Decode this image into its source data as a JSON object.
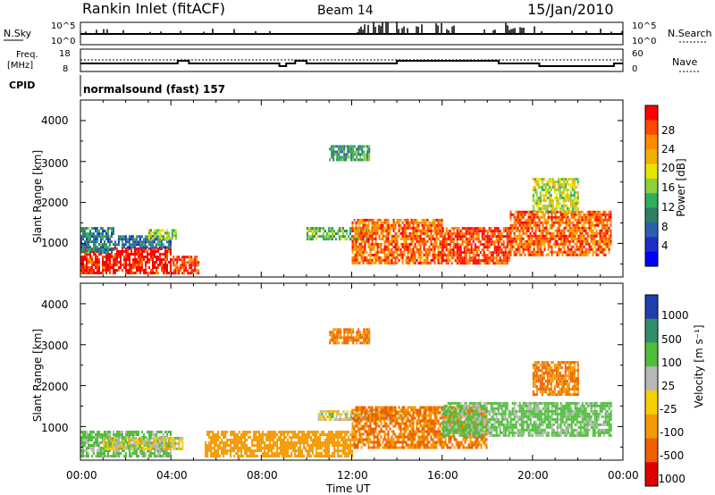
{
  "header": {
    "site": "Rankin Inlet (fitACF)",
    "beam": "Beam 14",
    "date": "15/Jan/2010"
  },
  "noise_panel": {
    "left_label": "N.Sky",
    "right_label": "N.Search",
    "ticks_left": [
      "10^5",
      "10^0"
    ],
    "ticks_right": [
      "10^5",
      "10^0"
    ]
  },
  "freq_panel": {
    "left_label_1": "Freq.",
    "left_label_2": "[MHz]",
    "cpid_label": "CPID",
    "ticks_left": [
      "18",
      "8"
    ],
    "ticks_right": [
      "60",
      "0"
    ],
    "right_label": "Nave",
    "program": "normalsound (fast) 157"
  },
  "power_panel": {
    "ylabel": "Slant Range [km]",
    "yticks": [
      "4000",
      "3000",
      "2000",
      "1000"
    ],
    "colorbar_label": "Power [dB]",
    "colorbar_ticks": [
      "28",
      "24",
      "20",
      "16",
      "12",
      "8",
      "4"
    ],
    "colorbar_colors": [
      "#ff0000",
      "#ff4a00",
      "#ff8c00",
      "#f2b000",
      "#e6e600",
      "#8fcf3a",
      "#2fae5c",
      "#2e7f66",
      "#2e5fae",
      "#1c2fc7",
      "#0000ff"
    ]
  },
  "velocity_panel": {
    "ylabel": "Slant Range [km]",
    "yticks": [
      "4000",
      "3000",
      "2000",
      "1000"
    ],
    "colorbar_label": "Velocity [m s⁻¹]",
    "colorbar_ticks": [
      "1000",
      "500",
      "100",
      "25",
      "-25",
      "-100",
      "-500",
      "-1000"
    ],
    "colorbar_colors": [
      "#1f3fb0",
      "#2f8f6a",
      "#4fbf3a",
      "#b8b8b8",
      "#f5d000",
      "#f59a00",
      "#f06000",
      "#e00000"
    ]
  },
  "xaxis": {
    "ticks": [
      "00:00",
      "04:00",
      "08:00",
      "12:00",
      "16:00",
      "20:00",
      "00:00"
    ],
    "label": "Time UT"
  },
  "chart_data": [
    {
      "type": "heatmap",
      "title": "Power",
      "xlabel": "Time UT",
      "ylabel": "Slant Range [km]",
      "xlim": [
        0,
        24
      ],
      "ylim": [
        180,
        4500
      ],
      "zlabel": "Power [dB]",
      "zticks": [
        4,
        8,
        12,
        16,
        20,
        24,
        28
      ],
      "regions": [
        {
          "t0": 0.0,
          "t1": 4.0,
          "r0": 300,
          "r1": 900,
          "power": 28
        },
        {
          "t0": 4.0,
          "t1": 5.2,
          "r0": 300,
          "r1": 700,
          "power": 26
        },
        {
          "t0": 0.0,
          "t1": 1.5,
          "r0": 800,
          "r1": 1400,
          "power": 8
        },
        {
          "t0": 1.5,
          "t1": 4.0,
          "r0": 900,
          "r1": 1200,
          "power": 6
        },
        {
          "t0": 3.0,
          "t1": 4.2,
          "r0": 1150,
          "r1": 1350,
          "power": 14
        },
        {
          "t0": 10.0,
          "t1": 13.0,
          "r0": 1100,
          "r1": 1400,
          "power": 12
        },
        {
          "t0": 11.0,
          "t1": 12.8,
          "r0": 3050,
          "r1": 3400,
          "power": 10
        },
        {
          "t0": 12.0,
          "t1": 16.0,
          "r0": 500,
          "r1": 1600,
          "power": 24
        },
        {
          "t0": 16.0,
          "t1": 19.0,
          "r0": 500,
          "r1": 1400,
          "power": 26
        },
        {
          "t0": 19.0,
          "t1": 23.5,
          "r0": 700,
          "r1": 1800,
          "power": 24
        },
        {
          "t0": 20.0,
          "t1": 22.0,
          "r0": 1800,
          "r1": 2600,
          "power": 16
        }
      ]
    },
    {
      "type": "heatmap",
      "title": "Velocity",
      "xlabel": "Time UT",
      "ylabel": "Slant Range [km]",
      "xlim": [
        0,
        24
      ],
      "ylim": [
        180,
        4500
      ],
      "zlabel": "Velocity [m s⁻¹]",
      "zticks": [
        1000,
        500,
        100,
        25,
        -25,
        -100,
        -500,
        -1000
      ],
      "regions": [
        {
          "t0": 0.0,
          "t1": 4.0,
          "r0": 300,
          "r1": 900,
          "velocity": 100
        },
        {
          "t0": 1.0,
          "t1": 4.5,
          "r0": 450,
          "r1": 750,
          "velocity": 0
        },
        {
          "t0": 5.5,
          "t1": 12.0,
          "r0": 300,
          "r1": 900,
          "velocity": -200
        },
        {
          "t0": 10.5,
          "t1": 14.5,
          "r0": 1150,
          "r1": 1400,
          "velocity": 0
        },
        {
          "t0": 11.0,
          "t1": 12.8,
          "r0": 3050,
          "r1": 3400,
          "velocity": -300
        },
        {
          "t0": 12.0,
          "t1": 18.0,
          "r0": 500,
          "r1": 1500,
          "velocity": -300
        },
        {
          "t0": 16.0,
          "t1": 23.5,
          "r0": 800,
          "r1": 1600,
          "velocity": 100
        },
        {
          "t0": 20.0,
          "t1": 22.0,
          "r0": 1800,
          "r1": 2600,
          "velocity": -300
        }
      ]
    }
  ]
}
